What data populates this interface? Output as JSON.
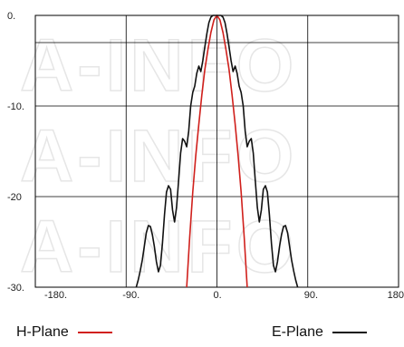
{
  "chart_data": {
    "type": "line",
    "xlim": [
      -180,
      180
    ],
    "ylim": [
      -30,
      0
    ],
    "x_ticks": [
      -180,
      -90,
      0,
      90,
      180
    ],
    "x_tick_labels": [
      "-180.",
      "-90.",
      "0.",
      "90.",
      "180"
    ],
    "y_ticks": [
      0,
      -10,
      -20,
      -30
    ],
    "y_tick_labels": [
      "0.",
      "-10.",
      "-20",
      "-30."
    ],
    "extra_gridline_y": -3,
    "grid": true,
    "legend_position": "bottom",
    "series": [
      {
        "name": "H-Plane",
        "color": "#d0201c",
        "x": [
          -30,
          -27,
          -24,
          -21,
          -18,
          -15,
          -12,
          -9,
          -6,
          -3,
          0,
          3,
          6,
          9,
          12,
          15,
          18,
          21,
          24,
          27,
          30
        ],
        "y": [
          -30,
          -24.5,
          -19.5,
          -15.5,
          -12,
          -8.8,
          -6,
          -3.8,
          -1.9,
          -0.5,
          0,
          -0.5,
          -1.9,
          -3.8,
          -6,
          -8.8,
          -12,
          -15.5,
          -19.5,
          -24.5,
          -30
        ]
      },
      {
        "name": "E-Plane",
        "color": "#111111",
        "x": [
          -80,
          -78,
          -76,
          -74,
          -72,
          -70,
          -68,
          -66,
          -64,
          -62,
          -60,
          -58,
          -56,
          -54,
          -52,
          -50,
          -48,
          -46,
          -44,
          -42,
          -40,
          -38,
          -36,
          -34,
          -32,
          -30,
          -28,
          -26,
          -24,
          -22,
          -20,
          -18,
          -16,
          -14,
          -12,
          -10,
          -8,
          -6,
          -4,
          -2,
          0,
          2,
          4,
          6,
          8,
          10,
          12,
          14,
          16,
          18,
          20,
          22,
          24,
          26,
          28,
          30,
          32,
          34,
          36,
          38,
          40,
          42,
          44,
          46,
          48,
          50,
          52,
          54,
          56,
          58,
          60,
          62,
          64,
          66,
          68,
          70,
          72,
          74,
          76,
          78,
          80
        ],
        "y": [
          -30,
          -29.2,
          -28.2,
          -27,
          -25.5,
          -24,
          -23.2,
          -23.3,
          -24.2,
          -25.5,
          -27.2,
          -28.3,
          -27.6,
          -25.2,
          -22,
          -19.5,
          -18.8,
          -19.2,
          -21.5,
          -22.8,
          -21.2,
          -18.2,
          -15.2,
          -13.6,
          -13.9,
          -14.5,
          -12.8,
          -10,
          -8.5,
          -7.8,
          -6.4,
          -5.6,
          -6.2,
          -5,
          -3.5,
          -2,
          -0.8,
          -0.2,
          0,
          0,
          0,
          0,
          0,
          -0.2,
          -0.8,
          -2,
          -3.5,
          -5,
          -6.2,
          -5.6,
          -6.4,
          -7.8,
          -8.5,
          -10,
          -12.8,
          -14.5,
          -13.9,
          -13.6,
          -15.2,
          -18.2,
          -21.2,
          -22.8,
          -21.5,
          -19.2,
          -18.8,
          -19.5,
          -22,
          -25.2,
          -27.6,
          -28.3,
          -27.2,
          -25.5,
          -24.2,
          -23.3,
          -23.2,
          -24,
          -25.5,
          -27,
          -28.2,
          -29.2,
          -30
        ]
      }
    ]
  },
  "watermark": "A-INFO"
}
